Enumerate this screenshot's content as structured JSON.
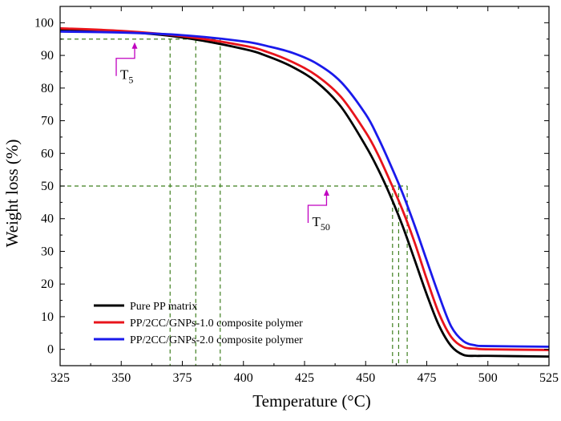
{
  "chart_data": {
    "type": "line",
    "title": "",
    "xlabel": "Temperature (°C)",
    "ylabel": "Weight loss (%)",
    "xlim": [
      325,
      525
    ],
    "ylim": [
      -5,
      105
    ],
    "xticks": [
      325,
      350,
      375,
      400,
      425,
      450,
      475,
      500,
      525
    ],
    "yticks": [
      0,
      10,
      20,
      30,
      40,
      50,
      60,
      70,
      80,
      90,
      100
    ],
    "legend_position": "bottom-left",
    "series": [
      {
        "name": "Pure PP matrix",
        "color": "#000000",
        "x": [
          325,
          350,
          375,
          400,
          410,
          420,
          430,
          440,
          450,
          455,
          460,
          465,
          470,
          475,
          480,
          485,
          490,
          495,
          500,
          525
        ],
        "y": [
          98.0,
          97.3,
          95.5,
          92.0,
          89.7,
          86.5,
          81.8,
          74.2,
          62.3,
          55.3,
          47.2,
          38.0,
          27.5,
          16.8,
          7.3,
          1.0,
          -1.7,
          -2.0,
          -2.0,
          -2.2
        ]
      },
      {
        "name": "PP/2CC/GNPs-1.0 composite polymer",
        "color": "#e8141c",
        "x": [
          325,
          350,
          375,
          400,
          410,
          420,
          430,
          440,
          450,
          455,
          460,
          465,
          470,
          475,
          480,
          485,
          490,
          495,
          500,
          525
        ],
        "y": [
          98.3,
          97.5,
          95.9,
          93.0,
          91.0,
          88.0,
          83.8,
          77.2,
          66.5,
          59.7,
          51.5,
          42.8,
          32.8,
          21.5,
          11.0,
          3.8,
          0.7,
          0.2,
          0.0,
          -0.2
        ]
      },
      {
        "name": "PP/2CC/GNPs-2.0 composite polymer",
        "color": "#1a1aeb",
        "x": [
          325,
          350,
          375,
          400,
          410,
          420,
          430,
          440,
          450,
          455,
          460,
          465,
          470,
          475,
          480,
          485,
          490,
          495,
          500,
          525
        ],
        "y": [
          97.3,
          97.0,
          96.2,
          94.3,
          92.8,
          90.8,
          87.5,
          81.8,
          72.0,
          65.0,
          56.8,
          48.0,
          38.0,
          27.2,
          16.5,
          7.0,
          2.5,
          1.2,
          1.0,
          0.8
        ]
      }
    ],
    "annotations": [
      {
        "label": "T",
        "subscript": "5",
        "level": 95,
        "temperatures": [
          370,
          380.5,
          390.5
        ],
        "arrow_x": 355.5
      },
      {
        "label": "T",
        "subscript": "50",
        "level": 50,
        "temperatures": [
          461,
          463.5,
          467
        ],
        "arrow_x": 434
      }
    ],
    "guide_color": "#3f7f1f",
    "annotation_color": "#c000c0"
  }
}
